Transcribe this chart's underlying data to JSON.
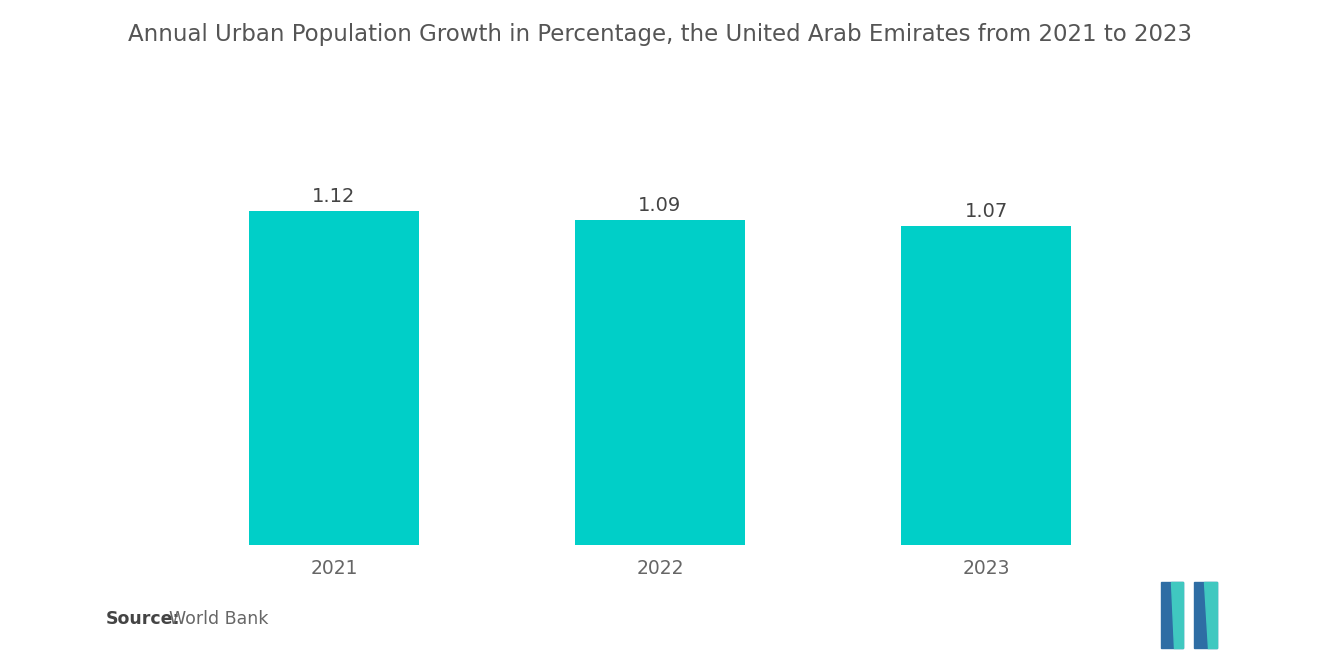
{
  "title": "Annual Urban Population Growth in Percentage, the United Arab Emirates from 2021 to 2023",
  "categories": [
    "2021",
    "2022",
    "2023"
  ],
  "values": [
    1.12,
    1.09,
    1.07
  ],
  "bar_color": "#00CFC8",
  "bar_width": 0.52,
  "value_labels": [
    "1.12",
    "1.09",
    "1.07"
  ],
  "ylim": [
    0,
    1.45
  ],
  "source_bold": "Source:",
  "source_text": "   World Bank",
  "title_fontsize": 16.5,
  "label_fontsize": 14,
  "tick_fontsize": 13.5,
  "source_fontsize": 12.5,
  "background_color": "#ffffff",
  "title_color": "#555555",
  "tick_color": "#666666",
  "value_label_color": "#444444",
  "source_bold_color": "#444444",
  "source_text_color": "#666666",
  "logo_blue": "#2E6DA4",
  "logo_teal": "#40C8C0"
}
